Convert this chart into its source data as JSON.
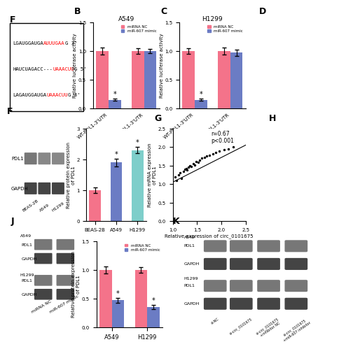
{
  "panel_B": {
    "title": "A549",
    "categories": [
      "WT-PDL1-3'UTR",
      "MUT-PDL1-3'UTR"
    ],
    "miRNA_NC": [
      1.0,
      1.0
    ],
    "miR607": [
      0.15,
      1.0
    ],
    "miRNA_NC_err": [
      0.06,
      0.05
    ],
    "miR607_err": [
      0.02,
      0.04
    ],
    "ylabel": "Relative luciferase activity",
    "ylim": [
      0,
      1.5
    ],
    "yticks": [
      0.0,
      0.5,
      1.0,
      1.5
    ],
    "color_NC": "#F4738A",
    "color_mimic": "#6B7CC4"
  },
  "panel_C": {
    "title": "H1299",
    "categories": [
      "WT-PDL1-3'UTR",
      "MUT-PDL1-3'UTR"
    ],
    "miRNA_NC": [
      1.0,
      1.0
    ],
    "miR607": [
      0.15,
      0.97
    ],
    "miRNA_NC_err": [
      0.05,
      0.06
    ],
    "miR607_err": [
      0.02,
      0.05
    ],
    "ylabel": "Relative luciferase activity",
    "ylim": [
      0,
      1.5
    ],
    "yticks": [
      0.0,
      0.5,
      1.0,
      1.5
    ],
    "color_NC": "#F4738A",
    "color_mimic": "#6B7CC4"
  },
  "panel_F_bar": {
    "categories": [
      "BEAS-2B",
      "A549",
      "H1299"
    ],
    "values": [
      1.0,
      1.9,
      2.3
    ],
    "errors": [
      0.08,
      0.12,
      0.1
    ],
    "colors": [
      "#F4738A",
      "#6B7CC4",
      "#7ECECA"
    ],
    "ylabel": "Relative protein expression\nof PDL1",
    "ylim": [
      0,
      3.0
    ],
    "yticks": [
      0,
      1,
      2,
      3
    ]
  },
  "panel_G": {
    "xlabel": "Relative expression of circ_0101675",
    "ylabel": "Relative mRNA expression\nof PDL1",
    "xlim": [
      1.0,
      2.5
    ],
    "ylim": [
      0.0,
      2.5
    ],
    "xticks": [
      1.0,
      1.5,
      2.0,
      2.5
    ],
    "yticks": [
      0.0,
      0.5,
      1.0,
      1.5,
      2.0,
      2.5
    ],
    "annotation": "r=0.67\np<0.001",
    "scatter_x": [
      1.05,
      1.08,
      1.12,
      1.15,
      1.18,
      1.22,
      1.25,
      1.28,
      1.3,
      1.32,
      1.35,
      1.38,
      1.42,
      1.45,
      1.48,
      1.52,
      1.55,
      1.6,
      1.65,
      1.7,
      1.75,
      1.82,
      1.88,
      1.95,
      2.05,
      2.15,
      2.25
    ],
    "scatter_y": [
      1.2,
      1.1,
      1.25,
      1.3,
      1.15,
      1.35,
      1.4,
      1.42,
      1.38,
      1.45,
      1.5,
      1.48,
      1.55,
      1.52,
      1.6,
      1.58,
      1.65,
      1.7,
      1.72,
      1.75,
      1.78,
      1.82,
      1.85,
      1.88,
      1.92,
      1.95,
      2.0
    ],
    "line_x": [
      1.0,
      2.5
    ],
    "line_y": [
      1.05,
      2.05
    ]
  },
  "panel_J_bar": {
    "categories": [
      "A549",
      "H1299"
    ],
    "miRNA_NC": [
      1.0,
      1.0
    ],
    "miR607": [
      0.47,
      0.35
    ],
    "miRNA_NC_err": [
      0.06,
      0.05
    ],
    "miR607_err": [
      0.04,
      0.04
    ],
    "ylabel": "Relative protein expression\nof PDL1",
    "ylim": [
      0,
      1.5
    ],
    "yticks": [
      0.0,
      0.5,
      1.0,
      1.5
    ],
    "color_NC": "#F4738A",
    "color_mimic": "#6B7CC4"
  },
  "colors": {
    "NC": "#F4738A",
    "mimic": "#6B7CC4",
    "teal": "#7ECECA"
  },
  "labels": {
    "miRNA_NC": "miRNA NC",
    "miR607": "miR-607 mimic"
  },
  "seq_lines": [
    {
      "prefix": "LGAUGGAUGA",
      "highlight": "AUUUGAA",
      "suffix": "G 3'"
    },
    {
      "prefix": "HAUCUAGACC---",
      "highlight": "UAAACUU",
      "suffix": "G 5'"
    },
    {
      "prefix": "LAGAUGGAUGA",
      "highlight": "UAAACUU",
      "suffix": "G 3'"
    }
  ],
  "blot_dark": "#4a4a4a",
  "blot_light": "#888888",
  "blot_mid": "#666666"
}
